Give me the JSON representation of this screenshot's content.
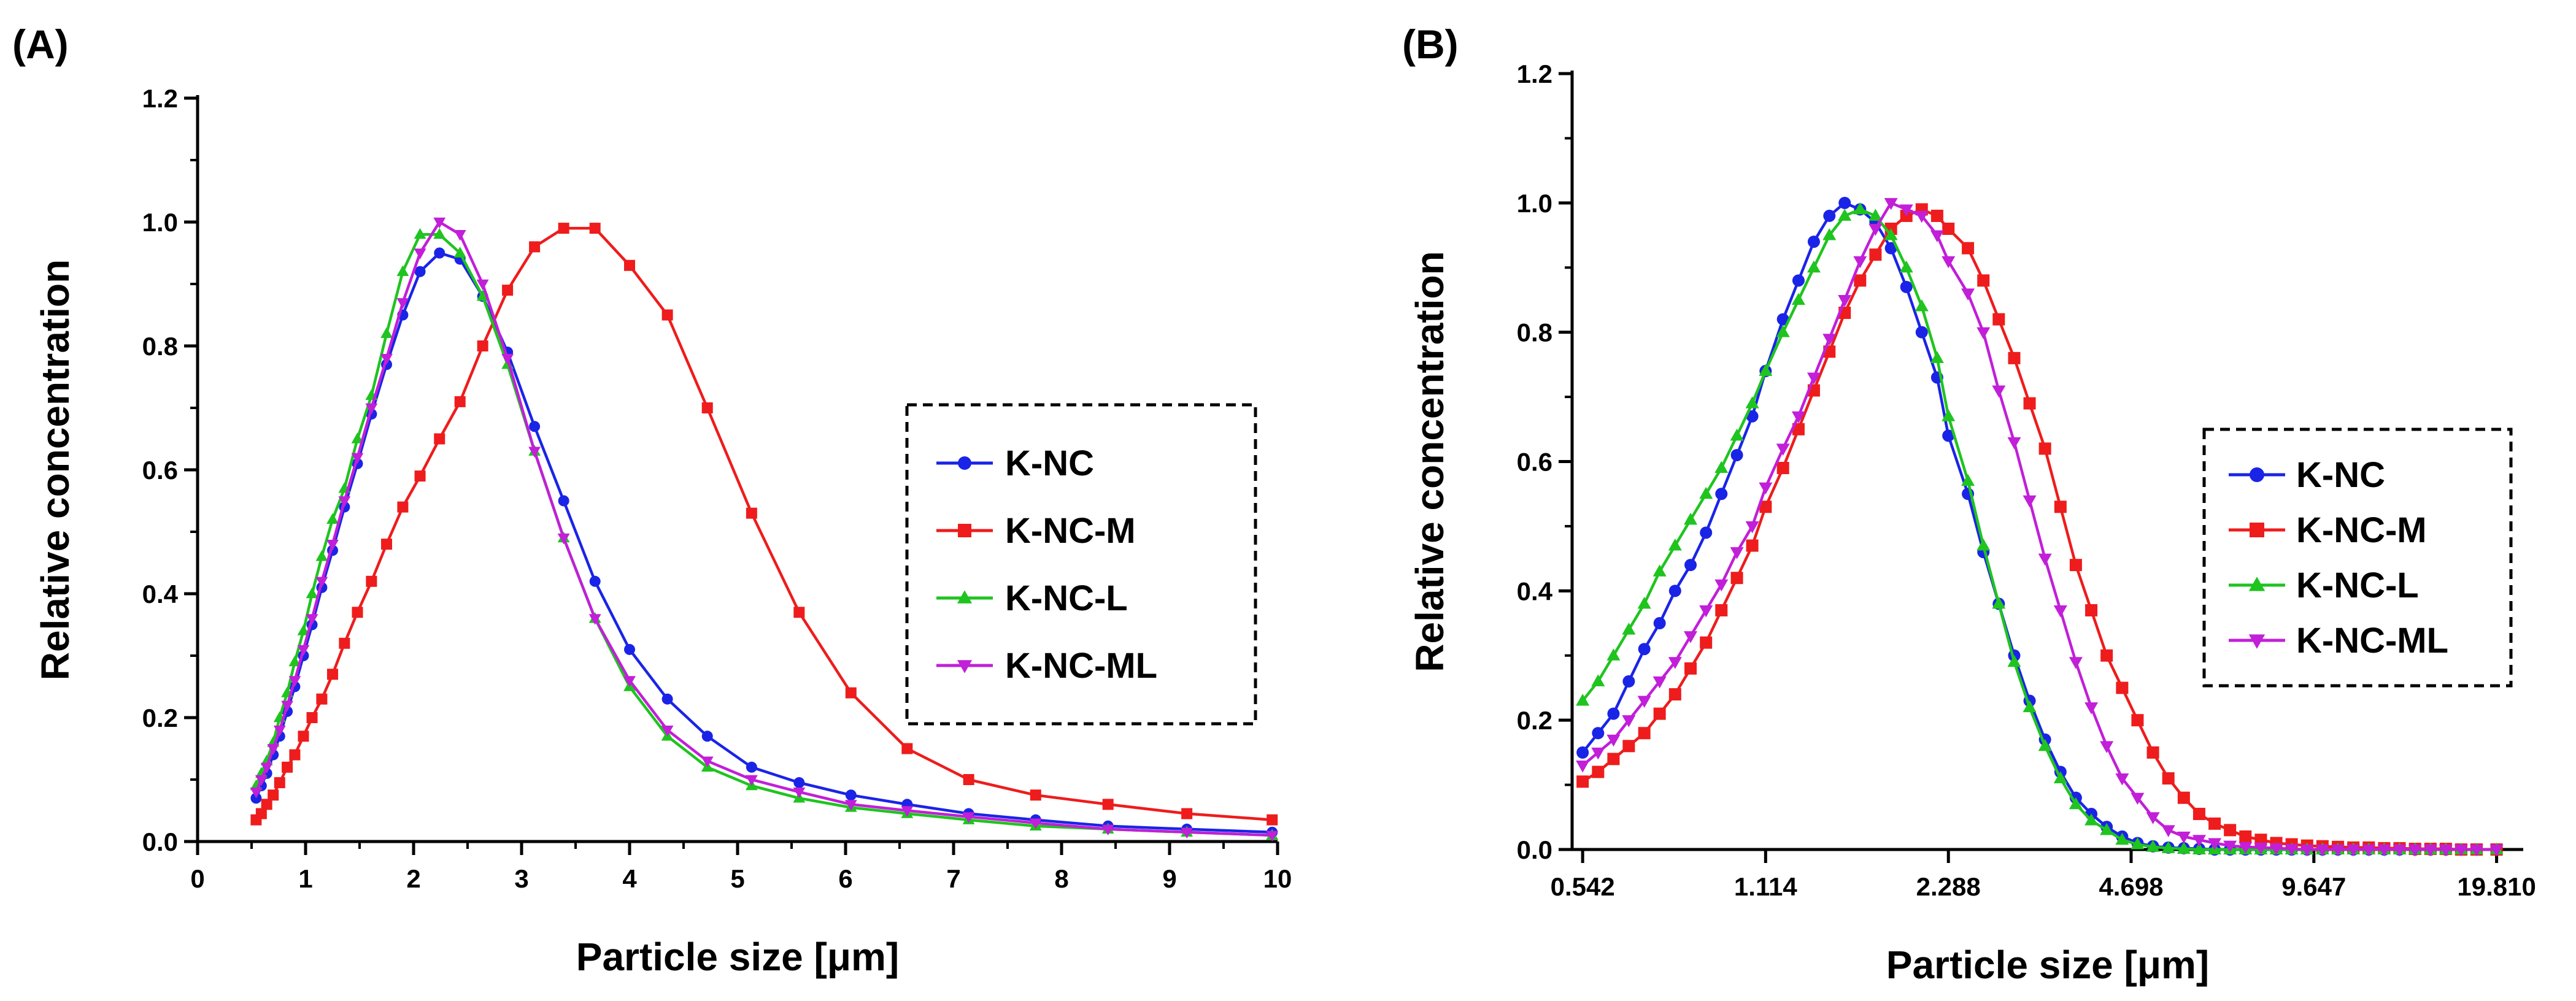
{
  "colors": {
    "K-NC": "#1a24e6",
    "K-NC-M": "#ee1c1c",
    "K-NC-L": "#1fc41f",
    "K-NC-ML": "#c11fd8",
    "axis": "#000000"
  },
  "chart_data": [
    {
      "panel_label": "(A)",
      "type": "line",
      "xscale": "linear",
      "xlabel": "Particle size [μm]",
      "ylabel": "Relative concentration",
      "xlim": [
        0,
        10
      ],
      "ylim": [
        0,
        1.2
      ],
      "xticks": [
        "0",
        "1",
        "2",
        "3",
        "4",
        "5",
        "6",
        "7",
        "8",
        "9",
        "10"
      ],
      "yticks": [
        "0.0",
        "0.2",
        "0.4",
        "0.6",
        "0.8",
        "1.0",
        "1.2"
      ],
      "legend_position": "right",
      "series": [
        {
          "name": "K-NC",
          "marker": "circle",
          "x": [
            0.542,
            0.59,
            0.64,
            0.7,
            0.76,
            0.83,
            0.9,
            0.98,
            1.06,
            1.15,
            1.25,
            1.36,
            1.48,
            1.61,
            1.75,
            1.9,
            2.06,
            2.24,
            2.43,
            2.64,
            2.87,
            3.12,
            3.39,
            3.68,
            4.0,
            4.35,
            4.72,
            5.13,
            5.57,
            6.05,
            6.57,
            7.14,
            7.76,
            8.43,
            9.16,
            9.95
          ],
          "y": [
            0.07,
            0.09,
            0.11,
            0.14,
            0.17,
            0.21,
            0.25,
            0.3,
            0.35,
            0.41,
            0.47,
            0.54,
            0.61,
            0.69,
            0.77,
            0.85,
            0.92,
            0.95,
            0.94,
            0.88,
            0.79,
            0.67,
            0.55,
            0.42,
            0.31,
            0.23,
            0.17,
            0.12,
            0.095,
            0.075,
            0.06,
            0.045,
            0.035,
            0.025,
            0.02,
            0.015
          ]
        },
        {
          "name": "K-NC-M",
          "marker": "square",
          "x": [
            0.542,
            0.59,
            0.64,
            0.7,
            0.76,
            0.83,
            0.9,
            0.98,
            1.06,
            1.15,
            1.25,
            1.36,
            1.48,
            1.61,
            1.75,
            1.9,
            2.06,
            2.24,
            2.43,
            2.64,
            2.87,
            3.12,
            3.39,
            3.68,
            4.0,
            4.35,
            4.72,
            5.13,
            5.57,
            6.05,
            6.57,
            7.14,
            7.76,
            8.43,
            9.16,
            9.95
          ],
          "y": [
            0.035,
            0.045,
            0.06,
            0.075,
            0.095,
            0.12,
            0.14,
            0.17,
            0.2,
            0.23,
            0.27,
            0.32,
            0.37,
            0.42,
            0.48,
            0.54,
            0.59,
            0.65,
            0.71,
            0.8,
            0.89,
            0.96,
            0.99,
            0.99,
            0.93,
            0.85,
            0.7,
            0.53,
            0.37,
            0.24,
            0.15,
            0.1,
            0.075,
            0.06,
            0.045,
            0.035
          ]
        },
        {
          "name": "K-NC-L",
          "marker": "triangle-up",
          "x": [
            0.542,
            0.59,
            0.64,
            0.7,
            0.76,
            0.83,
            0.9,
            0.98,
            1.06,
            1.15,
            1.25,
            1.36,
            1.48,
            1.61,
            1.75,
            1.9,
            2.06,
            2.24,
            2.43,
            2.64,
            2.87,
            3.12,
            3.39,
            3.68,
            4.0,
            4.35,
            4.72,
            5.13,
            5.57,
            6.05,
            6.57,
            7.14,
            7.76,
            8.43,
            9.16,
            9.95
          ],
          "y": [
            0.09,
            0.11,
            0.13,
            0.16,
            0.2,
            0.24,
            0.29,
            0.34,
            0.4,
            0.46,
            0.52,
            0.57,
            0.65,
            0.72,
            0.82,
            0.92,
            0.98,
            0.98,
            0.95,
            0.88,
            0.77,
            0.63,
            0.49,
            0.36,
            0.25,
            0.17,
            0.12,
            0.09,
            0.07,
            0.055,
            0.045,
            0.035,
            0.025,
            0.02,
            0.015,
            0.01
          ]
        },
        {
          "name": "K-NC-ML",
          "marker": "triangle-down",
          "x": [
            0.542,
            0.59,
            0.64,
            0.7,
            0.76,
            0.83,
            0.9,
            0.98,
            1.06,
            1.15,
            1.25,
            1.36,
            1.48,
            1.61,
            1.75,
            1.9,
            2.06,
            2.24,
            2.43,
            2.64,
            2.87,
            3.12,
            3.39,
            3.68,
            4.0,
            4.35,
            4.72,
            5.13,
            5.57,
            6.05,
            6.57,
            7.14,
            7.76,
            8.43,
            9.16,
            9.95
          ],
          "y": [
            0.08,
            0.1,
            0.12,
            0.15,
            0.18,
            0.22,
            0.26,
            0.31,
            0.36,
            0.42,
            0.48,
            0.55,
            0.62,
            0.7,
            0.78,
            0.87,
            0.95,
            1.0,
            0.98,
            0.9,
            0.78,
            0.63,
            0.49,
            0.36,
            0.26,
            0.18,
            0.13,
            0.1,
            0.08,
            0.06,
            0.05,
            0.04,
            0.03,
            0.02,
            0.015,
            0.01
          ]
        }
      ]
    },
    {
      "panel_label": "(B)",
      "type": "line",
      "xscale": "log",
      "xlabel": "Particle size [μm]",
      "ylabel": "Relative concentration",
      "xlim": [
        0.52,
        22.0
      ],
      "ylim": [
        0,
        1.2
      ],
      "xticks": [
        "0.542",
        "1.114",
        "2.288",
        "4.698",
        "9.647",
        "19.810"
      ],
      "yticks": [
        "0.0",
        "0.2",
        "0.4",
        "0.6",
        "0.8",
        "1.0",
        "1.2"
      ],
      "legend_position": "right",
      "series": [
        {
          "name": "K-NC",
          "marker": "circle",
          "x": [
            0.542,
            0.576,
            0.612,
            0.65,
            0.691,
            0.734,
            0.78,
            0.829,
            0.881,
            0.936,
            0.995,
            1.057,
            1.114,
            1.193,
            1.268,
            1.347,
            1.432,
            1.521,
            1.616,
            1.717,
            1.825,
            1.939,
            2.06,
            2.189,
            2.288,
            2.471,
            2.626,
            2.79,
            2.965,
            3.15,
            3.347,
            3.557,
            3.779,
            4.016,
            4.267,
            4.535,
            4.818,
            5.12,
            5.44,
            5.781,
            6.142,
            6.527,
            6.935,
            7.369,
            7.83,
            8.32,
            8.84,
            9.394,
            9.981,
            10.607,
            11.27,
            11.976,
            12.725,
            13.52,
            14.37,
            15.27,
            16.22,
            17.23,
            18.31,
            19.81
          ],
          "y": [
            0.15,
            0.18,
            0.21,
            0.26,
            0.31,
            0.35,
            0.4,
            0.44,
            0.49,
            0.55,
            0.61,
            0.67,
            0.74,
            0.82,
            0.88,
            0.94,
            0.98,
            1.0,
            0.99,
            0.97,
            0.93,
            0.87,
            0.8,
            0.73,
            0.64,
            0.55,
            0.46,
            0.38,
            0.3,
            0.23,
            0.17,
            0.12,
            0.08,
            0.055,
            0.035,
            0.02,
            0.01,
            0.005,
            0.003,
            0.002,
            0.001,
            0.0,
            0.0,
            0.0,
            0.0,
            0.0,
            0.0,
            0.0,
            0.0,
            0.0,
            0.0,
            0.0,
            0.0,
            0.0,
            0.0,
            0.0,
            0.0,
            0.0,
            0.0,
            0.0
          ]
        },
        {
          "name": "K-NC-M",
          "marker": "square",
          "x": [
            0.542,
            0.576,
            0.612,
            0.65,
            0.691,
            0.734,
            0.78,
            0.829,
            0.881,
            0.936,
            0.995,
            1.057,
            1.114,
            1.193,
            1.268,
            1.347,
            1.432,
            1.521,
            1.616,
            1.717,
            1.825,
            1.939,
            2.06,
            2.189,
            2.288,
            2.471,
            2.626,
            2.79,
            2.965,
            3.15,
            3.347,
            3.557,
            3.779,
            4.016,
            4.267,
            4.535,
            4.818,
            5.12,
            5.44,
            5.781,
            6.142,
            6.527,
            6.935,
            7.369,
            7.83,
            8.32,
            8.84,
            9.394,
            9.981,
            10.607,
            11.27,
            11.976,
            12.725,
            13.52,
            14.37,
            15.27,
            16.22,
            17.23,
            18.31,
            19.81
          ],
          "y": [
            0.105,
            0.12,
            0.14,
            0.16,
            0.18,
            0.21,
            0.24,
            0.28,
            0.32,
            0.37,
            0.42,
            0.47,
            0.53,
            0.59,
            0.65,
            0.71,
            0.77,
            0.83,
            0.88,
            0.92,
            0.96,
            0.98,
            0.99,
            0.98,
            0.96,
            0.93,
            0.88,
            0.82,
            0.76,
            0.69,
            0.62,
            0.53,
            0.44,
            0.37,
            0.3,
            0.25,
            0.2,
            0.15,
            0.11,
            0.08,
            0.055,
            0.04,
            0.03,
            0.02,
            0.015,
            0.01,
            0.008,
            0.006,
            0.005,
            0.004,
            0.003,
            0.003,
            0.002,
            0.002,
            0.001,
            0.001,
            0.001,
            0.0,
            0.0,
            0.0
          ]
        },
        {
          "name": "K-NC-L",
          "marker": "triangle-up",
          "x": [
            0.542,
            0.576,
            0.612,
            0.65,
            0.691,
            0.734,
            0.78,
            0.829,
            0.881,
            0.936,
            0.995,
            1.057,
            1.114,
            1.193,
            1.268,
            1.347,
            1.432,
            1.521,
            1.616,
            1.717,
            1.825,
            1.939,
            2.06,
            2.189,
            2.288,
            2.471,
            2.626,
            2.79,
            2.965,
            3.15,
            3.347,
            3.557,
            3.779,
            4.016,
            4.267,
            4.535,
            4.818,
            5.12,
            5.44,
            5.781,
            6.142,
            6.527,
            6.935,
            7.369,
            7.83,
            8.32,
            8.84,
            9.394,
            9.981,
            10.607,
            11.27,
            11.976,
            12.725,
            13.52,
            14.37,
            15.27,
            16.22,
            17.23,
            18.31,
            19.81
          ],
          "y": [
            0.23,
            0.26,
            0.3,
            0.34,
            0.38,
            0.43,
            0.47,
            0.51,
            0.55,
            0.59,
            0.64,
            0.69,
            0.74,
            0.8,
            0.85,
            0.9,
            0.95,
            0.98,
            0.99,
            0.98,
            0.95,
            0.9,
            0.84,
            0.76,
            0.67,
            0.57,
            0.47,
            0.38,
            0.29,
            0.22,
            0.16,
            0.11,
            0.07,
            0.045,
            0.03,
            0.015,
            0.008,
            0.004,
            0.002,
            0.001,
            0.0,
            0.0,
            0.0,
            0.0,
            0.0,
            0.0,
            0.0,
            0.0,
            0.0,
            0.0,
            0.0,
            0.0,
            0.0,
            0.0,
            0.0,
            0.0,
            0.0,
            0.0,
            0.0,
            0.0
          ]
        },
        {
          "name": "K-NC-ML",
          "marker": "triangle-down",
          "x": [
            0.542,
            0.576,
            0.612,
            0.65,
            0.691,
            0.734,
            0.78,
            0.829,
            0.881,
            0.936,
            0.995,
            1.057,
            1.114,
            1.193,
            1.268,
            1.347,
            1.432,
            1.521,
            1.616,
            1.717,
            1.825,
            1.939,
            2.06,
            2.189,
            2.288,
            2.471,
            2.626,
            2.79,
            2.965,
            3.15,
            3.347,
            3.557,
            3.779,
            4.016,
            4.267,
            4.535,
            4.818,
            5.12,
            5.44,
            5.781,
            6.142,
            6.527,
            6.935,
            7.369,
            7.83,
            8.32,
            8.84,
            9.394,
            9.981,
            10.607,
            11.27,
            11.976,
            12.725,
            13.52,
            14.37,
            15.27,
            16.22,
            17.23,
            18.31,
            19.81
          ],
          "y": [
            0.13,
            0.15,
            0.17,
            0.2,
            0.23,
            0.26,
            0.29,
            0.33,
            0.37,
            0.41,
            0.46,
            0.5,
            0.56,
            0.62,
            0.67,
            0.73,
            0.79,
            0.85,
            0.91,
            0.96,
            1.0,
            0.99,
            0.98,
            0.95,
            0.91,
            0.86,
            0.8,
            0.71,
            0.63,
            0.54,
            0.45,
            0.37,
            0.29,
            0.22,
            0.16,
            0.11,
            0.08,
            0.05,
            0.03,
            0.02,
            0.015,
            0.01,
            0.006,
            0.004,
            0.003,
            0.002,
            0.001,
            0.0,
            0.0,
            0.0,
            0.0,
            0.0,
            0.0,
            0.0,
            0.0,
            0.0,
            0.0,
            0.0,
            0.0,
            0.0
          ]
        }
      ]
    }
  ]
}
